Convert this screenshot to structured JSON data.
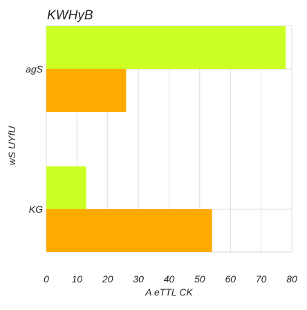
{
  "chart_data": {
    "type": "bar",
    "orientation": "horizontal",
    "title": "KWHyB",
    "xlabel": "A eTTL CK",
    "ylabel": "wS  UYfU",
    "categories": [
      "agS",
      "KG"
    ],
    "xlim": [
      0,
      80
    ],
    "xticks": [
      0,
      10,
      20,
      30,
      40,
      50,
      60,
      70,
      80
    ],
    "grid": true,
    "legend": "none",
    "series": [
      {
        "color": "#ccff22",
        "values": [
          78,
          13
        ]
      },
      {
        "color": "#ffaa00",
        "values": [
          26,
          54
        ]
      }
    ]
  }
}
